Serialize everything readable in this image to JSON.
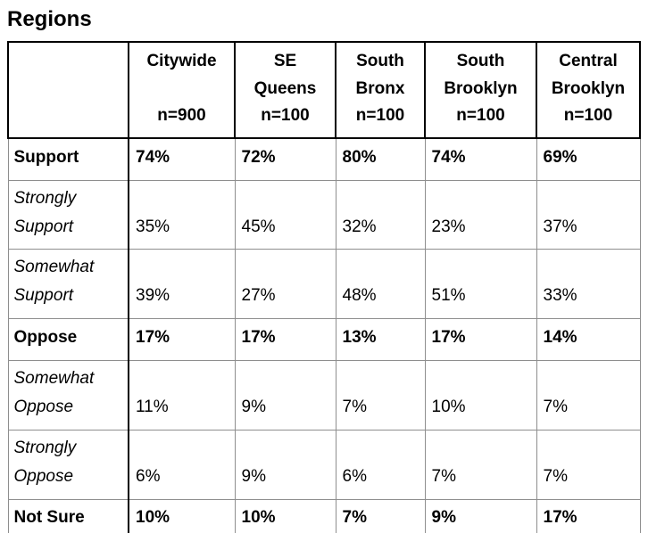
{
  "title": "Regions",
  "table": {
    "columns": [
      {
        "name_lines": [
          "Citywide"
        ],
        "n_label": "n=900"
      },
      {
        "name_lines": [
          "SE",
          "Queens"
        ],
        "n_label": "n=100"
      },
      {
        "name_lines": [
          "South",
          "Bronx"
        ],
        "n_label": "n=100"
      },
      {
        "name_lines": [
          "South",
          "Brooklyn"
        ],
        "n_label": "n=100"
      },
      {
        "name_lines": [
          "Central",
          "Brooklyn"
        ],
        "n_label": "n=100"
      }
    ],
    "rows": [
      {
        "label": "Support",
        "style": "bold",
        "values": [
          "74%",
          "72%",
          "80%",
          "74%",
          "69%"
        ]
      },
      {
        "label": "Strongly Support",
        "style": "italic",
        "values": [
          "35%",
          "45%",
          "32%",
          "23%",
          "37%"
        ]
      },
      {
        "label": "Somewhat Support",
        "style": "italic",
        "values": [
          "39%",
          "27%",
          "48%",
          "51%",
          "33%"
        ]
      },
      {
        "label": "Oppose",
        "style": "bold",
        "values": [
          "17%",
          "17%",
          "13%",
          "17%",
          "14%"
        ]
      },
      {
        "label": "Somewhat Oppose",
        "style": "italic",
        "values": [
          "11%",
          "9%",
          "7%",
          "10%",
          "7%"
        ]
      },
      {
        "label": "Strongly Oppose",
        "style": "italic",
        "values": [
          "6%",
          "9%",
          "6%",
          "7%",
          "7%"
        ]
      },
      {
        "label": "Not Sure",
        "style": "bold",
        "values": [
          "10%",
          "10%",
          "7%",
          "9%",
          "17%"
        ]
      }
    ]
  },
  "colors": {
    "text": "#000000",
    "strong_border": "#000000",
    "grid_line": "#8e8e8e",
    "background": "#ffffff"
  }
}
